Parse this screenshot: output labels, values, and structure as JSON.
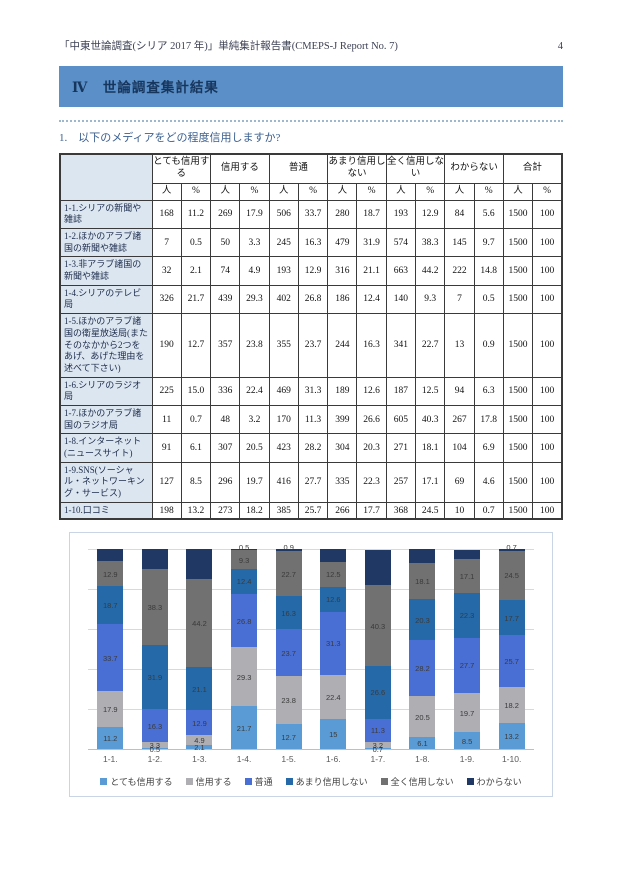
{
  "page": {
    "header_title": "「中東世論調査(シリア 2017 年)」単純集計報告書(CMEPS-J Report No. 7)",
    "page_number": "4",
    "section_banner": "Ⅳ　世論調査集計結果",
    "question": "1.　以下のメディアをどの程度信用しますか?"
  },
  "table": {
    "groups": [
      "とても信用する",
      "信用する",
      "普通",
      "あまり信用しない",
      "全く信用しない",
      "わからない",
      "合計"
    ],
    "unit_headers": [
      "人",
      "%"
    ],
    "rows": [
      {
        "label": "1-1.シリアの新聞や雑誌",
        "values": [
          "168",
          "11.2",
          "269",
          "17.9",
          "506",
          "33.7",
          "280",
          "18.7",
          "193",
          "12.9",
          "84",
          "5.6",
          "1500",
          "100"
        ]
      },
      {
        "label": "1-2.ほかのアラブ諸国の新聞や雑誌",
        "values": [
          "7",
          "0.5",
          "50",
          "3.3",
          "245",
          "16.3",
          "479",
          "31.9",
          "574",
          "38.3",
          "145",
          "9.7",
          "1500",
          "100"
        ]
      },
      {
        "label": "1-3.非アラブ諸国の新聞や雑誌",
        "values": [
          "32",
          "2.1",
          "74",
          "4.9",
          "193",
          "12.9",
          "316",
          "21.1",
          "663",
          "44.2",
          "222",
          "14.8",
          "1500",
          "100"
        ]
      },
      {
        "label": "1-4.シリアのテレビ局",
        "values": [
          "326",
          "21.7",
          "439",
          "29.3",
          "402",
          "26.8",
          "186",
          "12.4",
          "140",
          "9.3",
          "7",
          "0.5",
          "1500",
          "100"
        ]
      },
      {
        "label": "1-5.ほかのアラブ諸国の衛星放送局(またそのなかから2つをあげ、あげた理由を述べて下さい)",
        "values": [
          "190",
          "12.7",
          "357",
          "23.8",
          "355",
          "23.7",
          "244",
          "16.3",
          "341",
          "22.7",
          "13",
          "0.9",
          "1500",
          "100"
        ]
      },
      {
        "label": "1-6.シリアのラジオ局",
        "values": [
          "225",
          "15.0",
          "336",
          "22.4",
          "469",
          "31.3",
          "189",
          "12.6",
          "187",
          "12.5",
          "94",
          "6.3",
          "1500",
          "100"
        ]
      },
      {
        "label": "1-7.ほかのアラブ諸国のラジオ局",
        "values": [
          "11",
          "0.7",
          "48",
          "3.2",
          "170",
          "11.3",
          "399",
          "26.6",
          "605",
          "40.3",
          "267",
          "17.8",
          "1500",
          "100"
        ]
      },
      {
        "label": "1-8.インターネット(ニュースサイト)",
        "values": [
          "91",
          "6.1",
          "307",
          "20.5",
          "423",
          "28.2",
          "304",
          "20.3",
          "271",
          "18.1",
          "104",
          "6.9",
          "1500",
          "100"
        ]
      },
      {
        "label": "1-9.SNS(ソーシャル・ネットワーキング・サービス)",
        "values": [
          "127",
          "8.5",
          "296",
          "19.7",
          "416",
          "27.7",
          "335",
          "22.3",
          "257",
          "17.1",
          "69",
          "4.6",
          "1500",
          "100"
        ]
      },
      {
        "label": "1-10.口コミ",
        "values": [
          "198",
          "13.2",
          "273",
          "18.2",
          "385",
          "25.7",
          "266",
          "17.7",
          "368",
          "24.5",
          "10",
          "0.7",
          "1500",
          "100"
        ]
      }
    ]
  },
  "chart_data": {
    "type": "bar",
    "stacked": true,
    "percent_stacked": true,
    "title": "",
    "xlabel": "",
    "ylabel": "",
    "ylim": [
      0,
      100
    ],
    "gridline_step": 20,
    "grid": true,
    "legend_position": "bottom",
    "categories": [
      "1-1.",
      "1-2.",
      "1-3.",
      "1-4.",
      "1-5.",
      "1-6.",
      "1-7.",
      "1-8.",
      "1-9.",
      "1-10."
    ],
    "series": [
      {
        "name": "とても信用する",
        "color": "#5b9bd5",
        "values": [
          11.2,
          0.5,
          2.1,
          21.7,
          12.7,
          15.0,
          0.7,
          6.1,
          8.5,
          13.2
        ]
      },
      {
        "name": "信用する",
        "color": "#aeaeb3",
        "values": [
          17.9,
          3.3,
          4.9,
          29.3,
          23.8,
          22.4,
          3.2,
          20.5,
          19.7,
          18.2
        ]
      },
      {
        "name": "普通",
        "color": "#4a6fd4",
        "values": [
          33.7,
          16.3,
          12.9,
          26.8,
          23.7,
          31.3,
          11.3,
          28.2,
          27.7,
          25.7
        ]
      },
      {
        "name": "あまり信用しない",
        "color": "#2569a8",
        "values": [
          18.7,
          31.9,
          21.1,
          12.4,
          16.3,
          12.6,
          26.6,
          20.3,
          22.3,
          17.7
        ]
      },
      {
        "name": "全く信用しない",
        "color": "#717171",
        "values": [
          12.9,
          38.3,
          44.2,
          9.3,
          22.7,
          12.5,
          40.3,
          18.1,
          17.1,
          24.5
        ]
      },
      {
        "name": "わからない",
        "color": "#1f3864",
        "values": [
          5.6,
          9.7,
          14.8,
          0.5,
          0.9,
          6.3,
          17.8,
          6.9,
          4.6,
          0.7
        ]
      }
    ]
  }
}
